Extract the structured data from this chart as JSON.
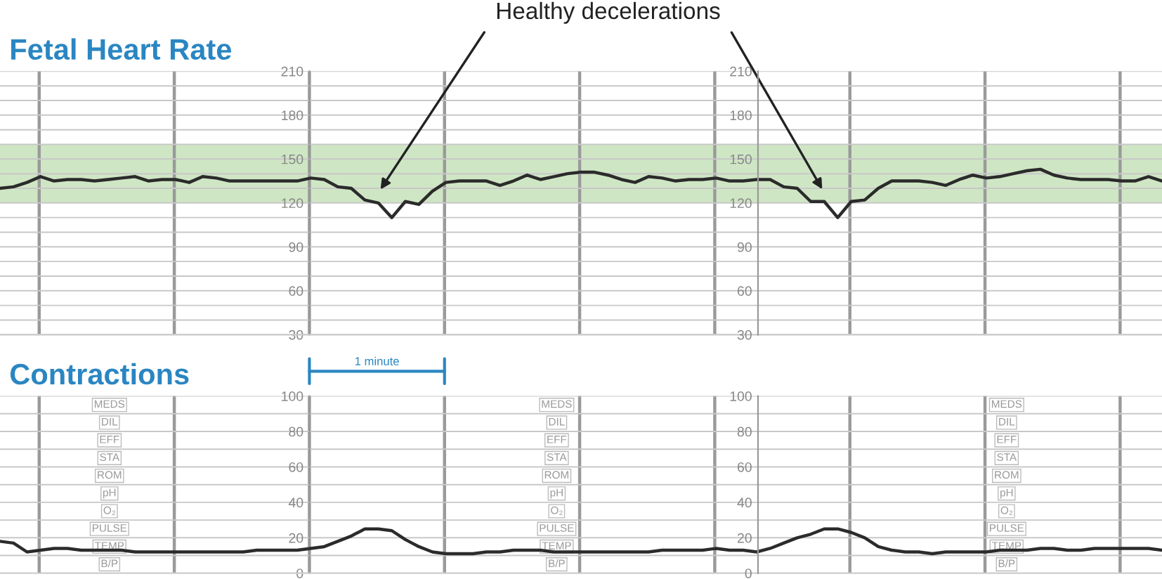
{
  "chart_data": [
    {
      "type": "line",
      "title": "Fetal Heart Rate",
      "categories": [
        null,
        null,
        null,
        null,
        null,
        null,
        null,
        null,
        null,
        null,
        null,
        null,
        null,
        null,
        null,
        null,
        null,
        null,
        null,
        null,
        null,
        null,
        null,
        null,
        null,
        null,
        null,
        null,
        null,
        null,
        null,
        null,
        null,
        null,
        null,
        null,
        null,
        null,
        null,
        null,
        null,
        null,
        null,
        null,
        null,
        null,
        null,
        null,
        null,
        null,
        null,
        null,
        null,
        null,
        null,
        null,
        null,
        null,
        null,
        null,
        null,
        null,
        null,
        null,
        null,
        null,
        null,
        null,
        null,
        null,
        null,
        null,
        null,
        null,
        null,
        null,
        null,
        null,
        null,
        null,
        null,
        null,
        null,
        null,
        null,
        null,
        null
      ],
      "series": [
        {
          "color": "#2b2b2b",
          "values": [
            130,
            131,
            134,
            138,
            135,
            136,
            136,
            135,
            136,
            137,
            138,
            135,
            136,
            136,
            134,
            138,
            137,
            135,
            135,
            135,
            135,
            135,
            135,
            137,
            136,
            131,
            130,
            122,
            120,
            110,
            121,
            119,
            128,
            134,
            135,
            135,
            135,
            132,
            135,
            139,
            136,
            138,
            140,
            141,
            141,
            139,
            136,
            134,
            138,
            137,
            135,
            136,
            136,
            137,
            135,
            135,
            136,
            136,
            131,
            130,
            121,
            121,
            110,
            121,
            122,
            130,
            135,
            135,
            135,
            134,
            132,
            136,
            139,
            137,
            138,
            140,
            142,
            143,
            139,
            137,
            136,
            136,
            136,
            135,
            135,
            138,
            135
          ]
        }
      ],
      "ylim": [
        30,
        210
      ],
      "yticks": [
        30,
        60,
        90,
        120,
        150,
        180,
        210
      ],
      "y2lim": [
        30,
        210
      ],
      "y2ticks": [
        30,
        60,
        90,
        120,
        150,
        180,
        210
      ],
      "tick_labels": "y",
      "grid": true,
      "line_style": "solid",
      "bands": [
        {
          "axis": "y",
          "from": 120,
          "to": 160,
          "color": "#cfe6c4"
        }
      ],
      "annotations": [
        "Healthy decelerations"
      ]
    },
    {
      "type": "line",
      "title": "Contractions",
      "categories": [
        null,
        null,
        null,
        null,
        null,
        null,
        null,
        null,
        null,
        null,
        null,
        null,
        null,
        null,
        null,
        null,
        null,
        null,
        null,
        null,
        null,
        null,
        null,
        null,
        null,
        null,
        null,
        null,
        null,
        null,
        null,
        null,
        null,
        null,
        null,
        null,
        null,
        null,
        null,
        null,
        null,
        null,
        null,
        null,
        null,
        null,
        null,
        null,
        null,
        null,
        null,
        null,
        null,
        null,
        null,
        null,
        null,
        null,
        null,
        null,
        null,
        null,
        null,
        null,
        null,
        null,
        null,
        null,
        null,
        null,
        null,
        null,
        null,
        null,
        null,
        null,
        null,
        null,
        null,
        null,
        null,
        null,
        null,
        null,
        null,
        null,
        null
      ],
      "series": [
        {
          "color": "#2b2b2b",
          "values": [
            18,
            17,
            12,
            13,
            14,
            14,
            13,
            13,
            13,
            13,
            12,
            12,
            12,
            12,
            12,
            12,
            12,
            12,
            12,
            13,
            13,
            13,
            13,
            14,
            15,
            18,
            21,
            25,
            25,
            24,
            19,
            15,
            12,
            11,
            11,
            11,
            12,
            12,
            13,
            13,
            13,
            12,
            12,
            12,
            12,
            12,
            12,
            12,
            12,
            13,
            13,
            13,
            13,
            14,
            13,
            13,
            12,
            14,
            17,
            20,
            22,
            25,
            25,
            23,
            20,
            15,
            13,
            12,
            12,
            11,
            12,
            12,
            12,
            12,
            13,
            13,
            13,
            14,
            14,
            13,
            13,
            14,
            14,
            14,
            14,
            14,
            13
          ]
        }
      ],
      "ylim": [
        0,
        100
      ],
      "yticks": [
        0,
        20,
        40,
        60,
        80,
        100
      ],
      "y2lim": [
        0,
        100
      ],
      "y2ticks": [
        0,
        20,
        40,
        60,
        80,
        100
      ],
      "tick_labels": "y",
      "grid": true,
      "line_style": "solid",
      "annotations": [
        "1 minute",
        "MEDS",
        "DIL",
        "EFF",
        "STA",
        "ROM",
        "pH",
        "O₂",
        "PULSE",
        "TEMP",
        "B/P",
        "MEDS",
        "DIL",
        "EFF",
        "STA",
        "ROM",
        "pH",
        "O₂",
        "PULSE",
        "TEMP",
        "B/P",
        "MEDS",
        "DIL",
        "EFF",
        "STA",
        "ROM",
        "pH",
        "O₂",
        "PULSE",
        "TEMP",
        "B/P"
      ]
    }
  ]
}
